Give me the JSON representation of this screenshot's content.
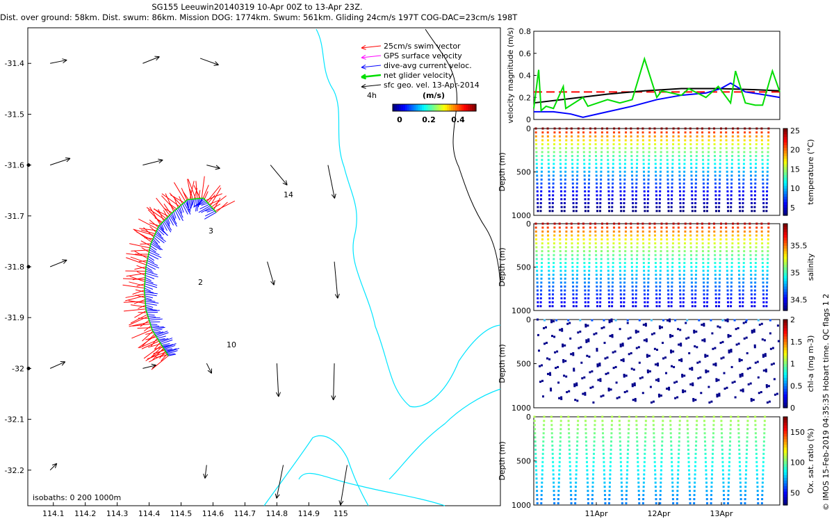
{
  "header": {
    "line1": "SG155 Leeuwin20140319 10-Apr 00Z to 13-Apr 23Z.",
    "line2": "Dist. over ground: 58km. Dist. swum: 86km. Mission DOG: 1774km. Swum: 561km. Gliding 24cm/s 197T COG-DAC=23cm/s 198T"
  },
  "colors": {
    "swim": "#ff0000",
    "gps": "#ff00ff",
    "dac": "#0000ff",
    "net": "#00dd00",
    "geo": "#000000",
    "isobath": "#00e5ff"
  },
  "chart_data": [
    {
      "type": "scatter",
      "name": "map",
      "xlabel": "",
      "ylabel": "",
      "xlim": [
        114.02,
        115.5
      ],
      "ylim": [
        -32.27,
        -31.33
      ],
      "xticks": [
        "114.1",
        "114.2",
        "114.3",
        "114.4",
        "114.5",
        "114.6",
        "114.7",
        "114.8",
        "114.9",
        "115"
      ],
      "yticks": [
        "-31.4",
        "-31.5",
        "-31.6",
        "-31.7",
        "-31.8",
        "-31.9",
        "-32",
        "-32.1",
        "-32.2"
      ],
      "legend": {
        "position": "top-right",
        "entries": [
          "25cm/s swim vector",
          "GPS surface velocity",
          "dive-avg current veloc.",
          "net glider velocity",
          "sfc geo. vel. 13-Apr-2014"
        ],
        "extra": "4h",
        "colorbar_title": "(m/s)",
        "colorbar_ticks": [
          "0",
          "0.2",
          "0.4"
        ]
      },
      "isobaths_label": "isobaths: 0   200  1000m",
      "day_labels": [
        "14",
        "3",
        "2",
        "10"
      ],
      "track": [
        [
          114.61,
          -31.693
        ],
        [
          114.57,
          -31.665
        ],
        [
          114.52,
          -31.668
        ],
        [
          114.47,
          -31.695
        ],
        [
          114.43,
          -31.72
        ],
        [
          114.405,
          -31.755
        ],
        [
          114.39,
          -31.8
        ],
        [
          114.385,
          -31.845
        ],
        [
          114.39,
          -31.885
        ],
        [
          114.41,
          -31.925
        ],
        [
          114.44,
          -31.955
        ],
        [
          114.46,
          -31.975
        ]
      ],
      "geo_vectors": [
        {
          "lon": 114.09,
          "lat": -31.4,
          "u": 0.05,
          "v": 0.01
        },
        {
          "lon": 114.38,
          "lat": -31.4,
          "u": 0.05,
          "v": 0.02
        },
        {
          "lon": 114.56,
          "lat": -31.39,
          "u": 0.055,
          "v": -0.02
        },
        {
          "lon": 114.09,
          "lat": -31.6,
          "u": 0.06,
          "v": 0.02
        },
        {
          "lon": 114.38,
          "lat": -31.6,
          "u": 0.06,
          "v": 0.015
        },
        {
          "lon": 114.58,
          "lat": -31.6,
          "u": 0.04,
          "v": -0.01
        },
        {
          "lon": 114.78,
          "lat": -31.6,
          "u": 0.05,
          "v": -0.06
        },
        {
          "lon": 114.96,
          "lat": -31.6,
          "u": 0.02,
          "v": -0.1
        },
        {
          "lon": 114.09,
          "lat": -31.8,
          "u": 0.05,
          "v": 0.02
        },
        {
          "lon": 114.77,
          "lat": -31.79,
          "u": 0.02,
          "v": -0.07
        },
        {
          "lon": 114.98,
          "lat": -31.79,
          "u": 0.01,
          "v": -0.11
        },
        {
          "lon": 114.09,
          "lat": -32.0,
          "u": 0.045,
          "v": 0.02
        },
        {
          "lon": 114.38,
          "lat": -32.0,
          "u": 0.04,
          "v": 0.01
        },
        {
          "lon": 114.58,
          "lat": -31.99,
          "u": 0.015,
          "v": -0.03
        },
        {
          "lon": 114.8,
          "lat": -31.99,
          "u": 0.005,
          "v": -0.1
        },
        {
          "lon": 114.98,
          "lat": -31.99,
          "u": -0.003,
          "v": -0.11
        },
        {
          "lon": 114.09,
          "lat": -32.2,
          "u": 0.02,
          "v": 0.02
        },
        {
          "lon": 114.58,
          "lat": -32.19,
          "u": -0.005,
          "v": -0.04
        },
        {
          "lon": 114.82,
          "lat": -32.19,
          "u": -0.02,
          "v": -0.1
        },
        {
          "lon": 115.02,
          "lat": -32.19,
          "u": -0.02,
          "v": -0.12
        }
      ]
    },
    {
      "type": "line",
      "name": "velocity",
      "ylabel": "velocity magnitude (m/s)",
      "ylim": [
        0,
        0.8
      ],
      "yticks": [
        "0",
        "0.2",
        "0.4",
        "0.6",
        "0.8"
      ],
      "series": [
        {
          "name": "swim",
          "color": "#ff0000",
          "dash": true,
          "x": [
            0,
            1
          ],
          "y": [
            0.25,
            0.25
          ]
        },
        {
          "name": "geo",
          "color": "#000000",
          "x": [
            0,
            0.15,
            0.3,
            0.45,
            0.6,
            0.75,
            0.9,
            1
          ],
          "y": [
            0.15,
            0.19,
            0.23,
            0.26,
            0.28,
            0.28,
            0.27,
            0.26
          ]
        },
        {
          "name": "dac",
          "color": "#0000ff",
          "x": [
            0,
            0.08,
            0.15,
            0.2,
            0.3,
            0.4,
            0.5,
            0.6,
            0.7,
            0.76,
            0.8,
            0.86,
            0.92,
            1
          ],
          "y": [
            0.07,
            0.07,
            0.05,
            0.02,
            0.07,
            0.12,
            0.18,
            0.22,
            0.24,
            0.28,
            0.33,
            0.25,
            0.23,
            0.2
          ]
        },
        {
          "name": "net",
          "color": "#00dd00",
          "x": [
            0,
            0.02,
            0.03,
            0.05,
            0.08,
            0.12,
            0.13,
            0.2,
            0.22,
            0.3,
            0.35,
            0.4,
            0.45,
            0.5,
            0.52,
            0.6,
            0.63,
            0.7,
            0.75,
            0.8,
            0.82,
            0.86,
            0.9,
            0.93,
            0.97,
            1
          ],
          "y": [
            0.1,
            0.45,
            0.08,
            0.12,
            0.1,
            0.3,
            0.1,
            0.2,
            0.12,
            0.18,
            0.15,
            0.18,
            0.55,
            0.2,
            0.26,
            0.22,
            0.28,
            0.2,
            0.3,
            0.15,
            0.44,
            0.15,
            0.13,
            0.13,
            0.44,
            0.25
          ]
        }
      ]
    },
    {
      "type": "scatter",
      "name": "temperature",
      "ylabel": "Depth (m)",
      "clabel": "temperature (°C)",
      "ylim": [
        1000,
        0
      ],
      "yticks": [
        "0",
        "500",
        "1000"
      ],
      "cbar_ticks": [
        "5",
        "10",
        "15",
        "20",
        "25"
      ],
      "cmin": 3,
      "cmax": 25.5,
      "profiles": 20,
      "max_depth": 950
    },
    {
      "type": "scatter",
      "name": "salinity",
      "ylabel": "Depth (m)",
      "clabel": "salinity",
      "ylim": [
        1000,
        0
      ],
      "yticks": [
        "0",
        "500",
        "1000"
      ],
      "cbar_ticks": [
        "34.5",
        "35",
        "35.5"
      ],
      "cmin": 34.3,
      "cmax": 35.9,
      "profiles": 20,
      "max_depth": 950
    },
    {
      "type": "scatter",
      "name": "chl",
      "ylabel": "Depth (m)",
      "clabel": "chl-a (mg m-3)",
      "ylim": [
        1000,
        0
      ],
      "yticks": [
        "0",
        "500",
        "1000"
      ],
      "cbar_ticks": [
        "0",
        "0.5",
        "1",
        "1.5",
        "2"
      ],
      "cmin": 0,
      "cmax": 2,
      "profiles": 20,
      "max_depth": 950
    },
    {
      "type": "scatter",
      "name": "oxygen",
      "ylabel": "Depth (m)",
      "clabel": "Ox. sat. ratio (%)",
      "ylim": [
        1000,
        0
      ],
      "yticks": [
        "0",
        "500",
        "1000"
      ],
      "cbar_ticks": [
        "50",
        "100",
        "150"
      ],
      "cmin": 30,
      "cmax": 175,
      "xticks": [
        "11Apr",
        "12Apr",
        "13Apr"
      ],
      "profiles": 14,
      "max_depth": 980
    }
  ],
  "footer": {
    "credit": "© IMOS 15-Feb-2019 04:35:35 Hobart time. QC flags 1  2"
  }
}
